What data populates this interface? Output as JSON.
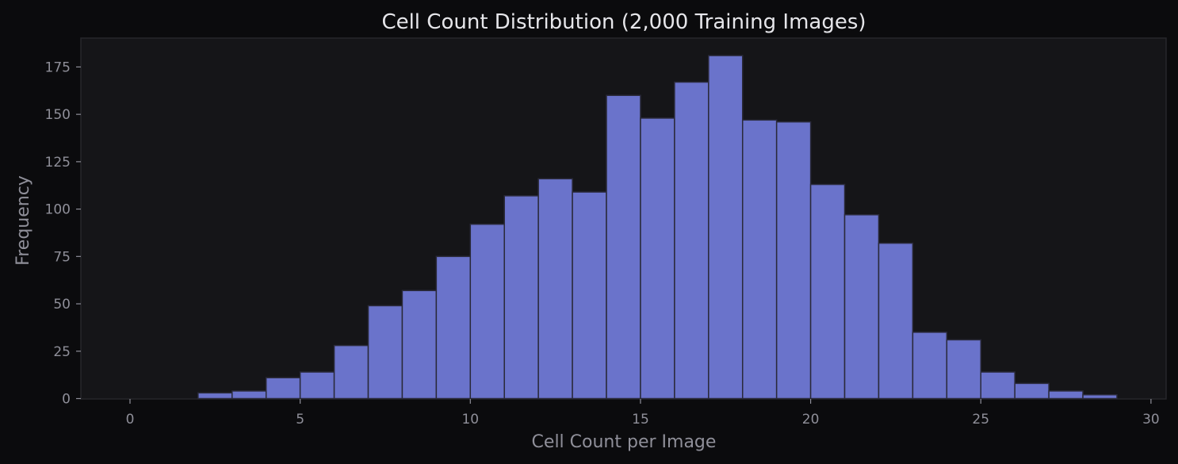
{
  "chart_data": {
    "type": "bar",
    "title": "Cell Count Distribution (2,000 Training Images)",
    "xlabel": "Cell Count per Image",
    "ylabel": "Frequency",
    "bin_width": 1,
    "bin_edges_start": 2,
    "categories": [
      2,
      3,
      4,
      5,
      6,
      7,
      8,
      9,
      10,
      11,
      12,
      13,
      14,
      15,
      16,
      17,
      18,
      19,
      20,
      21,
      22,
      23,
      24,
      25,
      26,
      27,
      28
    ],
    "values": [
      3,
      4,
      11,
      14,
      28,
      49,
      57,
      75,
      92,
      107,
      116,
      109,
      160,
      148,
      167,
      181,
      147,
      146,
      113,
      97,
      82,
      35,
      31,
      14,
      8,
      4,
      2
    ],
    "xlim": [
      -1.5,
      30.4
    ],
    "ylim": [
      0,
      190
    ],
    "xticks": [
      0,
      5,
      10,
      15,
      20,
      25,
      30
    ],
    "yticks": [
      0,
      25,
      50,
      75,
      100,
      125,
      150,
      175
    ],
    "grid": false,
    "legend": null
  },
  "colors": {
    "background": "#0b0b0d",
    "plot_background": "#151518",
    "plot_border": "#26262b",
    "bar_fill": "#6a73cb",
    "bar_edge": "#2a2a3a",
    "text": "#e6e6ea",
    "tick_text": "#8f8f99",
    "tick_mark": "#8f8f99"
  }
}
